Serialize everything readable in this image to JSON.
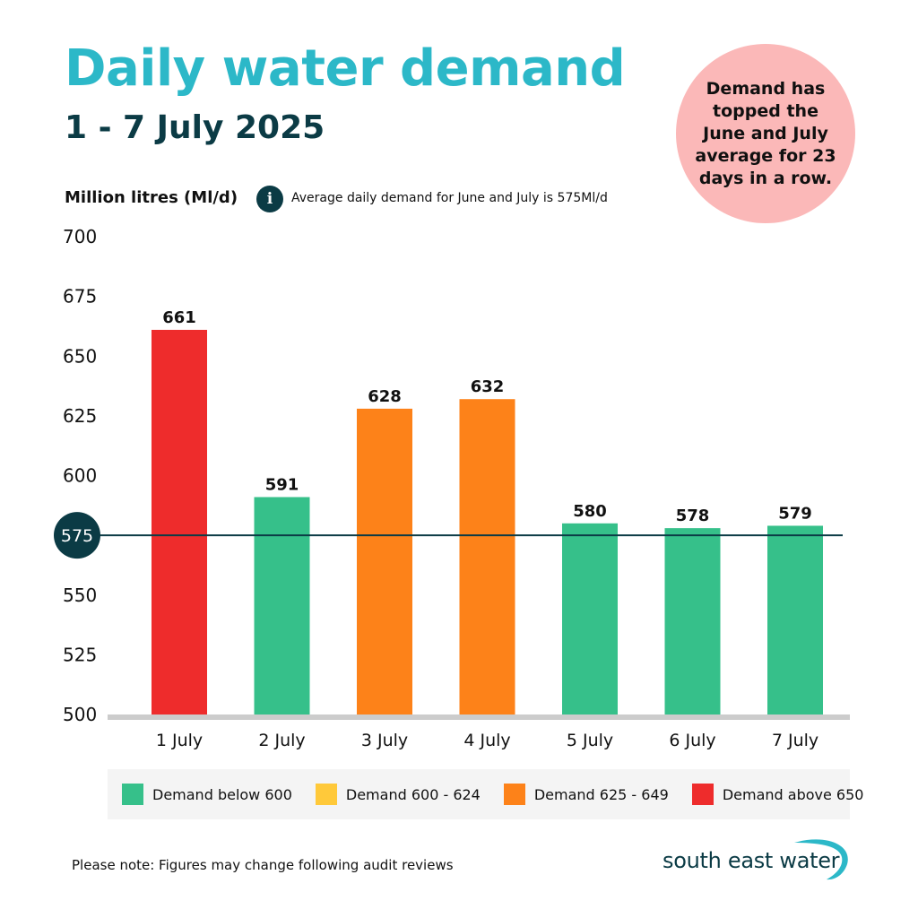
{
  "title": "Daily water demand",
  "subtitle": "1 - 7 July 2025",
  "callout": "Demand has topped the June and July average for 23 days in a row.",
  "unit_label": "Million litres (Ml/d)",
  "info_icon": "i",
  "info_text": "Average daily demand for June and July is 575Ml/d",
  "note": "Please note: Figures may change following audit reviews",
  "logo_text": "south east water",
  "colors": {
    "teal": "#2cb8c8",
    "dark": "#0b3b45",
    "green": "#36c08a",
    "yellow": "#ffc93a",
    "orange": "#fd8219",
    "red": "#ee2c2c",
    "axis": "#cccccc"
  },
  "legend": [
    {
      "label": "Demand below 600",
      "color": "#36c08a"
    },
    {
      "label": "Demand 600 - 624",
      "color": "#ffc93a"
    },
    {
      "label": "Demand 625 - 649",
      "color": "#fd8219"
    },
    {
      "label": "Demand above 650",
      "color": "#ee2c2c"
    }
  ],
  "chart_data": {
    "type": "bar",
    "title": "Daily water demand",
    "subtitle": "1 - 7 July 2025",
    "ylabel": "Million litres (Ml/d)",
    "xlabel": "",
    "categories": [
      "1 July",
      "2 July",
      "3 July",
      "4 July",
      "5 July",
      "6 July",
      "7 July"
    ],
    "values": [
      661,
      591,
      628,
      632,
      580,
      578,
      579
    ],
    "value_labels": [
      "661",
      "591",
      "628",
      "632",
      "580",
      "578",
      "579"
    ],
    "bar_colors": [
      "#ee2c2c",
      "#36c08a",
      "#fd8219",
      "#fd8219",
      "#36c08a",
      "#36c08a",
      "#36c08a"
    ],
    "ylim": [
      500,
      700
    ],
    "yticks": [
      "700",
      "675",
      "650",
      "625",
      "600",
      "575",
      "550",
      "525",
      "500"
    ],
    "ytick_values": [
      700,
      675,
      650,
      625,
      600,
      575,
      550,
      525,
      500
    ],
    "reference_line": {
      "value": 575,
      "label": "575"
    },
    "grid": false
  }
}
